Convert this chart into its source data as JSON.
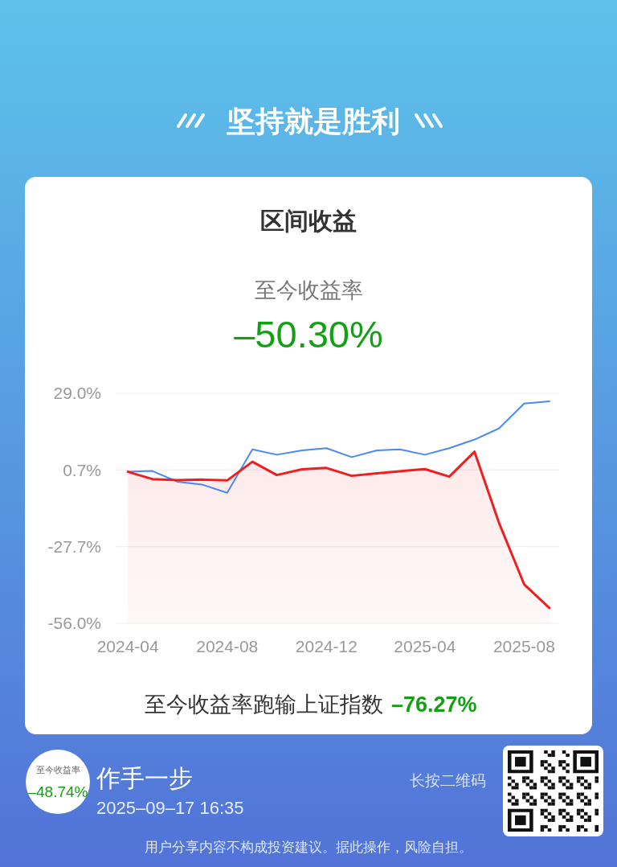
{
  "chart_data": {
    "type": "line",
    "title": "区间收益",
    "subtitle": "至今收益率",
    "annotations": [
      "–50.30%",
      "坚持就是胜利",
      "至今收益率跑输上证指数",
      "–76.27%",
      "至今收益率",
      "–48.74%",
      "作手一步",
      "2025–09–17 16:35",
      "长按二维码",
      "用户分享内容不构成投资建议。据此操作，风险自担。"
    ],
    "x": [
      "2024-04",
      "2024-05",
      "2024-06",
      "2024-07",
      "2024-08",
      "2024-09",
      "2024-10",
      "2024-11",
      "2024-12",
      "2025-01",
      "2025-02",
      "2025-03",
      "2025-04",
      "2025-05",
      "2025-06",
      "2025-07",
      "2025-08",
      "2025-09"
    ],
    "series": [
      {
        "type": "line",
        "color": "#f01e1e",
        "values": [
          0.0,
          -2.7,
          -3.1,
          -2.9,
          -3.2,
          3.7,
          -1.2,
          0.9,
          1.4,
          -1.5,
          -0.6,
          0.2,
          1.0,
          -1.8,
          7.4,
          -18.8,
          -41.6,
          -50.3
        ],
        "lower": [
          -56.0,
          -56.0,
          -56.0,
          -56.0,
          -56.0,
          -56.0,
          -56.0,
          -56.0,
          -56.0,
          -56.0,
          -56.0,
          -56.0,
          -56.0,
          -56.0,
          -56.0,
          -56.0,
          -56.0,
          -56.0
        ],
        "upper": [
          0.0,
          -2.7,
          -3.1,
          -2.9,
          -3.2,
          3.7,
          -1.2,
          0.9,
          1.4,
          -1.5,
          -0.6,
          0.2,
          1.0,
          -1.8,
          7.4,
          -18.8,
          -41.6,
          -50.3
        ]
      },
      {
        "type": "line",
        "color": "#4a89f3",
        "values": [
          0.0,
          0.3,
          -3.7,
          -4.7,
          -7.8,
          8.3,
          6.3,
          7.9,
          8.7,
          5.4,
          7.9,
          8.3,
          6.3,
          8.7,
          11.9,
          16.0,
          25.2,
          26.0
        ]
      }
    ],
    "xlim": [
      "2024-03-16",
      "2025-09-14"
    ],
    "xticks": [
      "2024-04",
      "2024-08",
      "2024-12",
      "2025-04",
      "2025-08"
    ],
    "ylim": [
      -56.0,
      29.0
    ],
    "yticks": [
      {
        "value": 29.0,
        "label": "29.0%"
      },
      {
        "value": 0.7,
        "label": "0.7%"
      },
      {
        "value": -27.7,
        "label": "-27.7%"
      },
      {
        "value": -56.0,
        "label": "-56.0%"
      }
    ],
    "grid": "y"
  }
}
